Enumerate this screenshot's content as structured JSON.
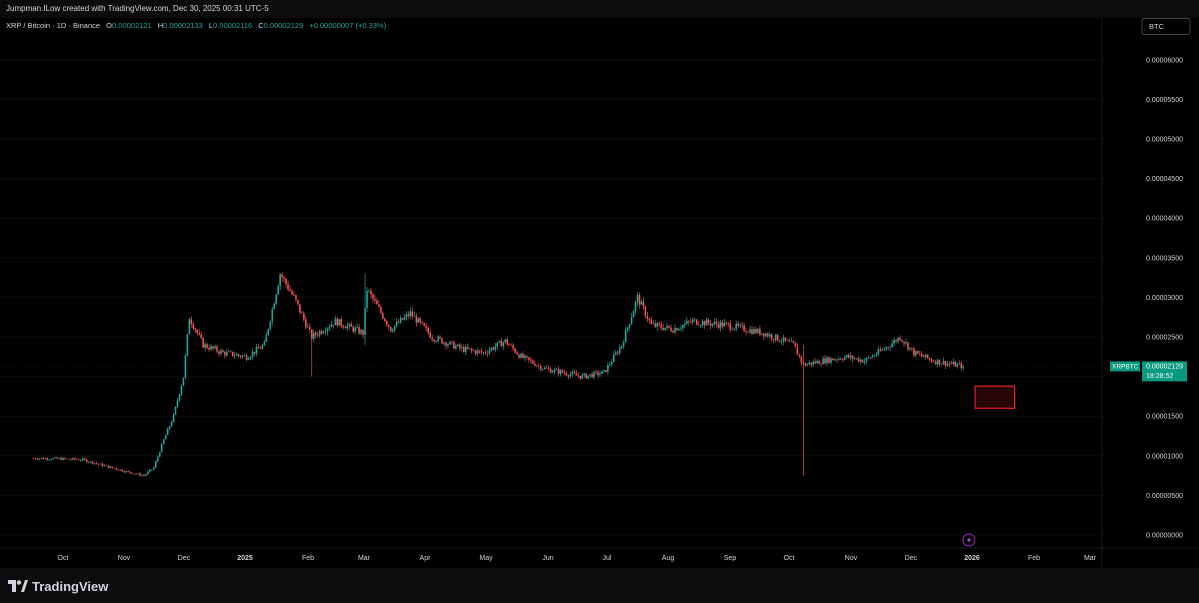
{
  "header": {
    "attribution": "Jumpman.ILow created with TradingView.com, Dec 30, 2025 00:31 UTC-5"
  },
  "legend": {
    "symbol": "XRP / Bitcoin · 1D · Binance",
    "o_label": "O",
    "o": "0.00002121",
    "h_label": "H",
    "h": "0.00002133",
    "l_label": "L",
    "l": "0.00002116",
    "c_label": "C",
    "c": "0.00002129",
    "change": "+0.00000007 (+0.33%)"
  },
  "currency_button": "BTC",
  "price_tag": {
    "symbol": "XRPBTC",
    "price": "0.00002129",
    "countdown": "18:28:52"
  },
  "brand": {
    "name": "TradingView"
  },
  "colors": {
    "up": "#26a69a",
    "down": "#ef5350",
    "axis_text": "#d1d4dc",
    "tag": "#089981",
    "box": "#e52020",
    "bolt": "#9c27b0"
  },
  "chart_data": {
    "type": "candlestick",
    "symbol": "XRPBTC",
    "x_ticks": [
      "Oct",
      "Nov",
      "Dec",
      "2025",
      "Feb",
      "Mar",
      "Apr",
      "May",
      "Jun",
      "Jul",
      "Aug",
      "Sep",
      "Oct",
      "Nov",
      "Dec",
      "2026",
      "Feb",
      "Mar"
    ],
    "y_ticks": [
      "0.00006000",
      "0.00005500",
      "0.00005000",
      "0.00004500",
      "0.00004000",
      "0.00003500",
      "0.00003000",
      "0.00002500",
      "0.00002000",
      "0.00001500",
      "0.00001000",
      "0.00000500",
      "0.00000000"
    ],
    "y_range": [
      0,
      6.3e-05
    ],
    "last_price": 2.129e-05,
    "close_path": [
      [
        "2024-09-15",
        9.7e-06
      ],
      [
        "2024-10-01",
        9.6e-06
      ],
      [
        "2024-10-10",
        9.5e-06
      ],
      [
        "2024-10-20",
        8.8e-06
      ],
      [
        "2024-11-01",
        8e-06
      ],
      [
        "2024-11-10",
        7.5e-06
      ],
      [
        "2024-11-15",
        8.5e-06
      ],
      [
        "2024-11-20",
        1.2e-05
      ],
      [
        "2024-11-25",
        1.5e-05
      ],
      [
        "2024-11-30",
        2e-05
      ],
      [
        "2024-12-03",
        2.75e-05
      ],
      [
        "2024-12-10",
        2.4e-05
      ],
      [
        "2024-12-20",
        2.3e-05
      ],
      [
        "2025-01-01",
        2.25e-05
      ],
      [
        "2025-01-10",
        2.4e-05
      ],
      [
        "2025-01-18",
        3.3e-05
      ],
      [
        "2025-01-25",
        3e-05
      ],
      [
        "2025-02-03",
        2.5e-05
      ],
      [
        "2025-02-15",
        2.7e-05
      ],
      [
        "2025-03-01",
        2.55e-05
      ],
      [
        "2025-03-03",
        3.1e-05
      ],
      [
        "2025-03-15",
        2.6e-05
      ],
      [
        "2025-03-25",
        2.8e-05
      ],
      [
        "2025-04-05",
        2.5e-05
      ],
      [
        "2025-04-20",
        2.35e-05
      ],
      [
        "2025-05-01",
        2.3e-05
      ],
      [
        "2025-05-12",
        2.45e-05
      ],
      [
        "2025-05-20",
        2.25e-05
      ],
      [
        "2025-06-01",
        2.1e-05
      ],
      [
        "2025-06-20",
        2e-05
      ],
      [
        "2025-07-01",
        2.05e-05
      ],
      [
        "2025-07-10",
        2.4e-05
      ],
      [
        "2025-07-18",
        3e-05
      ],
      [
        "2025-07-25",
        2.65e-05
      ],
      [
        "2025-08-05",
        2.6e-05
      ],
      [
        "2025-08-15",
        2.7e-05
      ],
      [
        "2025-09-01",
        2.65e-05
      ],
      [
        "2025-09-20",
        2.55e-05
      ],
      [
        "2025-10-05",
        2.4e-05
      ],
      [
        "2025-10-10",
        2.15e-05
      ],
      [
        "2025-10-20",
        2.2e-05
      ],
      [
        "2025-11-01",
        2.25e-05
      ],
      [
        "2025-11-10",
        2.2e-05
      ],
      [
        "2025-11-20",
        2.35e-05
      ],
      [
        "2025-11-28",
        2.5e-05
      ],
      [
        "2025-12-05",
        2.3e-05
      ],
      [
        "2025-12-15",
        2.2e-05
      ],
      [
        "2025-12-30",
        2.13e-05
      ]
    ],
    "wick_extremes": [
      [
        "2025-02-03",
        2e-05,
        2.6e-05
      ],
      [
        "2025-03-02",
        2.4e-05,
        3.3e-05
      ],
      [
        "2025-10-10",
        7.5e-06,
        2.4e-05
      ]
    ],
    "annotation_box": {
      "x_from": "2026-01-05",
      "x_to": "2026-01-25",
      "y_from": 1.6e-05,
      "y_to": 1.88e-05
    }
  }
}
